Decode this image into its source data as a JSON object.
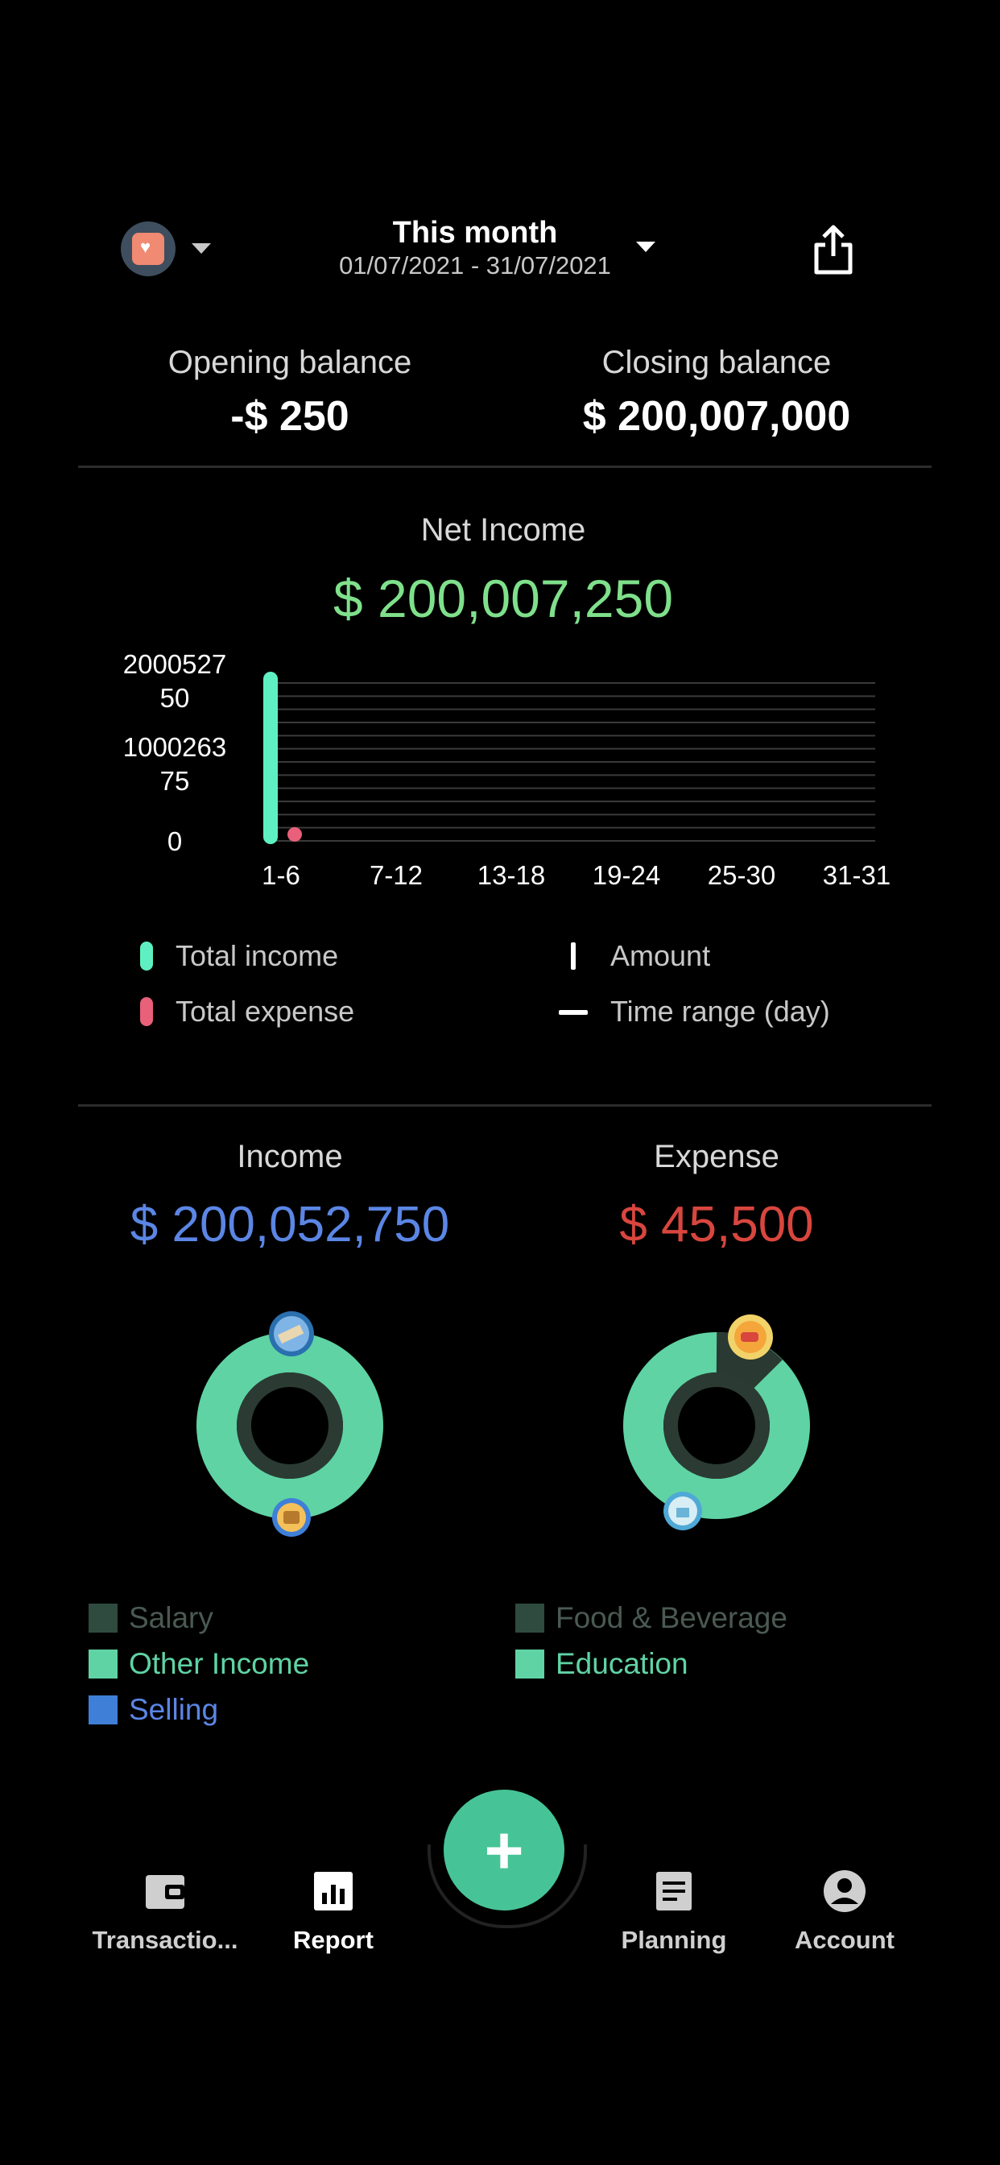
{
  "header": {
    "period_title": "This month",
    "period_range": "01/07/2021 - 31/07/2021",
    "wallet_icon": "wallet-avatar-icon",
    "share_icon": "share-icon"
  },
  "balances": {
    "opening_label": "Opening balance",
    "opening_value": "-$ 250",
    "closing_label": "Closing balance",
    "closing_value": "$ 200,007,000"
  },
  "net_income": {
    "label": "Net Income",
    "value": "$ 200,007,250"
  },
  "chart_data": {
    "type": "bar",
    "categories": [
      "1-6",
      "7-12",
      "13-18",
      "19-24",
      "25-30",
      "31-31"
    ],
    "series": [
      {
        "name": "Total income",
        "values": [
          200052750,
          0,
          0,
          0,
          0,
          0
        ],
        "color": "#5ff0c2"
      },
      {
        "name": "Total expense",
        "values": [
          45500,
          0,
          0,
          0,
          0,
          0
        ],
        "color": "#e8607a"
      }
    ],
    "y_ticks": [
      {
        "value": 200052750,
        "line1": "2000527",
        "line2": "50"
      },
      {
        "value": 100026375,
        "line1": "1000263",
        "line2": "75"
      },
      {
        "value": 0,
        "line1": "0",
        "line2": ""
      }
    ],
    "ylim": [
      0,
      200052750
    ],
    "grid": true
  },
  "legend": {
    "total_income": "Total income",
    "total_expense": "Total expense",
    "amount": "Amount",
    "time_range": "Time range (day)"
  },
  "income": {
    "label": "Income",
    "value": "$ 200,052,750",
    "color": "#5b86e5",
    "categories": [
      {
        "name": "Salary",
        "color": "#2f4a3f",
        "text_color": "#4a5a52"
      },
      {
        "name": "Other Income",
        "color": "#5fd3a4",
        "text_color": "#5fd3a4"
      },
      {
        "name": "Selling",
        "color": "#3f7fd8",
        "text_color": "#5b86e5"
      }
    ]
  },
  "expense": {
    "label": "Expense",
    "value": "$ 45,500",
    "color": "#d8463e",
    "categories": [
      {
        "name": "Food & Beverage",
        "color": "#2f4a3f",
        "text_color": "#4a5a52"
      },
      {
        "name": "Education",
        "color": "#5fd3a4",
        "text_color": "#5fd3a4"
      }
    ]
  },
  "nav": {
    "transactions": "Transactio...",
    "report": "Report",
    "planning": "Planning",
    "account": "Account",
    "add": "+"
  }
}
